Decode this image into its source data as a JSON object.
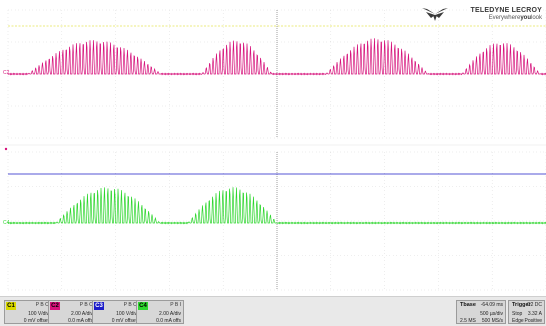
{
  "logo": {
    "brand": "TELEDYNE LECROY",
    "tagline_pre": "Everywhere",
    "tagline_bold": "you",
    "tagline_post": "look"
  },
  "colors": {
    "c1": "#d8d800",
    "c2": "#d6127b",
    "c3": "#1c1cc8",
    "c4": "#2ed62e",
    "grid": "#b9b9b9",
    "center": "#777777"
  },
  "traces": {
    "c2_bursts": [
      [
        28,
        161,
        34,
        17
      ],
      [
        202,
        272,
        34,
        17
      ],
      [
        326,
        428,
        36,
        17
      ],
      [
        462,
        540,
        32,
        17
      ]
    ],
    "c4_bursts": [
      [
        56,
        160,
        36,
        17
      ],
      [
        188,
        277,
        36,
        17
      ]
    ]
  },
  "channels": [
    {
      "tag": "C1",
      "coupling": "P B O",
      "scale": "100 V/div",
      "offset": "0 mV offset"
    },
    {
      "tag": "C2",
      "coupling": "P B O",
      "scale": "2.00 A/div",
      "offset": "0.0 mA offs"
    },
    {
      "tag": "C3",
      "coupling": "P B O",
      "scale": "100 V/div",
      "offset": "0 mV offset"
    },
    {
      "tag": "C4",
      "coupling": "P B I",
      "scale": "2.00 A/div",
      "offset": "0.0 mA offs"
    }
  ],
  "timebase": {
    "title": "Tbase",
    "delay": "-64.09 ms",
    "scale": "500 µs/div",
    "samples": "2.5 MS",
    "rate": "500 MS/s"
  },
  "trigger": {
    "title": "Trigger",
    "channel": "C2 DC",
    "mode": "Stop",
    "level": "3.32 A",
    "type": "Edge",
    "slope": "Positive"
  }
}
